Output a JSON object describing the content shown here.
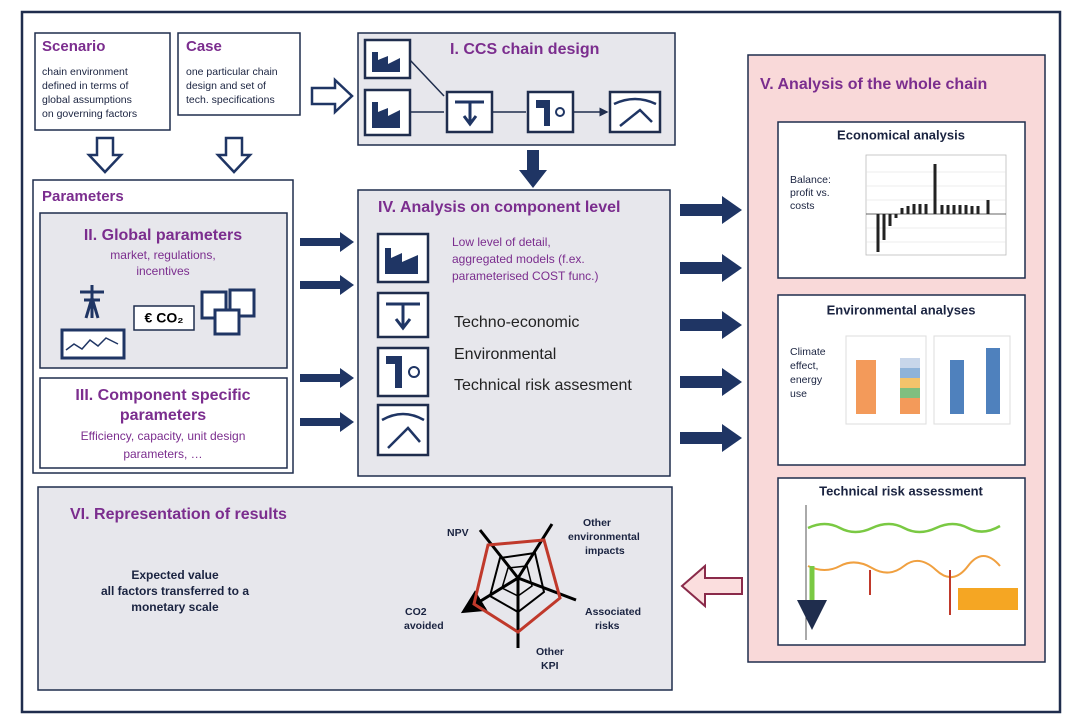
{
  "scenario": {
    "title": "Scenario",
    "lines": [
      "chain environment",
      "defined in terms of",
      "global assumptions",
      "on governing  factors"
    ]
  },
  "case": {
    "title": "Case",
    "lines": [
      "one particular chain",
      "design and set of",
      "tech. specifications"
    ]
  },
  "ccs": {
    "title": "I.  CCS chain design"
  },
  "parameters": {
    "title": "Parameters"
  },
  "global": {
    "title": "II. Global parameters",
    "lines": [
      "market, regulations,",
      "incentives"
    ],
    "co2": "€ CO₂"
  },
  "component": {
    "title": [
      "III.  Component specific",
      "parameters"
    ],
    "lines": [
      "Efficiency, capacity, unit design",
      "parameters, …"
    ]
  },
  "analysis": {
    "title": "IV.  Analysis on component level",
    "detail": [
      "Low level of detail,",
      "aggregated models (f.ex.",
      "parameterised COST func.)"
    ],
    "items": [
      "Techno-economic",
      "Environmental",
      "Technical risk assesment"
    ]
  },
  "whole": {
    "title": "V.  Analysis of the whole chain"
  },
  "economical": {
    "title": "Economical analysis",
    "label": [
      "Balance:",
      "profit vs.",
      "costs"
    ]
  },
  "environmental": {
    "title": "Environmental analyses",
    "label": [
      "Climate",
      "effect,",
      "energy",
      "use"
    ]
  },
  "risk": {
    "title": "Technical risk assessment"
  },
  "results": {
    "title": "VI.  Representation of results",
    "lines": [
      "Expected value",
      "all factors transferred to a",
      "monetary scale"
    ]
  },
  "radar": {
    "npv": "NPV",
    "environmental": [
      "Other",
      "environmental",
      "impacts"
    ],
    "risks": [
      "Associated",
      "risks"
    ],
    "kpi": [
      "Other",
      "KPI"
    ],
    "co2": [
      "CO2",
      "avoided"
    ]
  }
}
